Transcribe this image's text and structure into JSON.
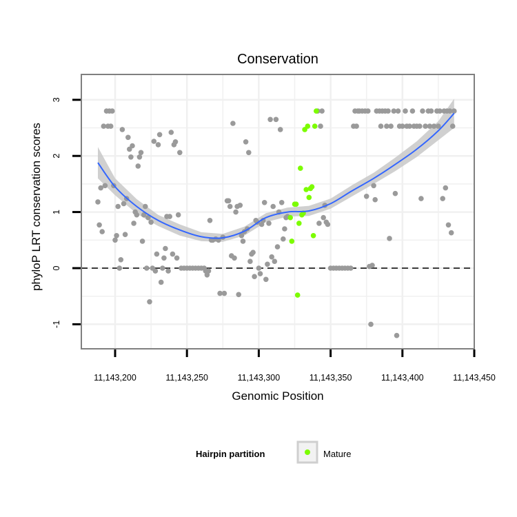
{
  "colors": {
    "background_point": "#9a9a9a",
    "mature_point": "#7CFC00",
    "smooth_line": "#3366FF",
    "ribbon": "#c8c8c8",
    "panel_border": "#7f7f7f",
    "grid": "#f0f0f0",
    "zero_line": "#000000"
  },
  "chart_data": {
    "type": "scatter",
    "title": "Conservation",
    "xlabel": "Genomic Position",
    "ylabel": "phyloP LRT conservation scores",
    "xlim": [
      11143190,
      11143440
    ],
    "ylim": [
      -1.45,
      3.45
    ],
    "x_ticks": [
      11143200,
      11143250,
      11143300,
      11143350,
      11143400,
      11143450
    ],
    "x_tick_labels": [
      "11,143,200",
      "11,143,250",
      "11,143,300",
      "11,143,350",
      "11,143,400",
      "11,143,450"
    ],
    "y_ticks": [
      -1,
      0,
      1,
      2,
      3
    ],
    "y_tick_labels": [
      "-1",
      "0",
      "1",
      "2",
      "3"
    ],
    "grid": true,
    "reference_line": {
      "y": 0,
      "style": "dashed"
    },
    "legend": {
      "title": "Hairpin partition",
      "placement": "bottom",
      "entries": [
        "Mature"
      ]
    },
    "series": [
      {
        "name": "Mature",
        "points": [
          [
            11143322,
            0.9
          ],
          [
            11143323,
            0.48
          ],
          [
            11143325,
            1.14
          ],
          [
            11143326,
            1.14
          ],
          [
            11143327,
            -0.48
          ],
          [
            11143328,
            0.8
          ],
          [
            11143329,
            1.78
          ],
          [
            11143330,
            0.95
          ],
          [
            11143331,
            0.98
          ],
          [
            11143332,
            2.47
          ],
          [
            11143333,
            1.4
          ],
          [
            11143334,
            2.53
          ],
          [
            11143335,
            1.26
          ],
          [
            11143336,
            1.42
          ],
          [
            11143337,
            1.45
          ],
          [
            11143338,
            0.58
          ],
          [
            11143339,
            2.53
          ],
          [
            11143340,
            2.8
          ]
        ]
      },
      {
        "name": "",
        "points": [
          [
            11143188,
            1.18
          ],
          [
            11143189,
            0.77
          ],
          [
            11143190,
            1.43
          ],
          [
            11143191,
            0.65
          ],
          [
            11143192,
            2.53
          ],
          [
            11143193,
            1.47
          ],
          [
            11143194,
            2.8
          ],
          [
            11143195,
            2.53
          ],
          [
            11143196,
            2.8
          ],
          [
            11143197,
            2.53
          ],
          [
            11143198,
            2.8
          ],
          [
            11143199,
            1.47
          ],
          [
            11143200,
            0.5
          ],
          [
            11143201,
            0.58
          ],
          [
            11143202,
            1.1
          ],
          [
            11143203,
            0.0
          ],
          [
            11143204,
            0.15
          ],
          [
            11143205,
            2.47
          ],
          [
            11143206,
            1.15
          ],
          [
            11143207,
            0.6
          ],
          [
            11143208,
            1.24
          ],
          [
            11143209,
            2.33
          ],
          [
            11143210,
            2.12
          ],
          [
            11143211,
            1.98
          ],
          [
            11143212,
            2.18
          ],
          [
            11143213,
            0.8
          ],
          [
            11143214,
            1.0
          ],
          [
            11143215,
            0.95
          ],
          [
            11143216,
            1.82
          ],
          [
            11143217,
            1.98
          ],
          [
            11143218,
            2.06
          ],
          [
            11143219,
            0.48
          ],
          [
            11143220,
            0.95
          ],
          [
            11143221,
            1.1
          ],
          [
            11143222,
            0.0
          ],
          [
            11143223,
            0.9
          ],
          [
            11143224,
            -0.6
          ],
          [
            11143225,
            0.82
          ],
          [
            11143226,
            0.0
          ],
          [
            11143227,
            2.26
          ],
          [
            11143228,
            -0.05
          ],
          [
            11143229,
            0.25
          ],
          [
            11143230,
            2.2
          ],
          [
            11143231,
            2.38
          ],
          [
            11143232,
            -0.25
          ],
          [
            11143233,
            0.0
          ],
          [
            11143234,
            0.18
          ],
          [
            11143235,
            0.35
          ],
          [
            11143236,
            0.92
          ],
          [
            11143237,
            -0.05
          ],
          [
            11143238,
            0.92
          ],
          [
            11143239,
            2.42
          ],
          [
            11143240,
            0.25
          ],
          [
            11143241,
            2.2
          ],
          [
            11143242,
            2.25
          ],
          [
            11143243,
            0.18
          ],
          [
            11143244,
            0.95
          ],
          [
            11143245,
            2.06
          ],
          [
            11143246,
            0.0
          ],
          [
            11143248,
            0.0
          ],
          [
            11143250,
            0.0
          ],
          [
            11143252,
            0.0
          ],
          [
            11143254,
            0.0
          ],
          [
            11143256,
            0.0
          ],
          [
            11143258,
            0.0
          ],
          [
            11143260,
            0.0
          ],
          [
            11143262,
            0.0
          ],
          [
            11143263,
            -0.05
          ],
          [
            11143264,
            -0.12
          ],
          [
            11143265,
            -0.05
          ],
          [
            11143266,
            0.85
          ],
          [
            11143267,
            0.5
          ],
          [
            11143268,
            0.5
          ],
          [
            11143270,
            0.52
          ],
          [
            11143272,
            0.5
          ],
          [
            11143273,
            -0.45
          ],
          [
            11143275,
            0.55
          ],
          [
            11143276,
            -0.45
          ],
          [
            11143278,
            1.2
          ],
          [
            11143279,
            1.2
          ],
          [
            11143280,
            1.1
          ],
          [
            11143281,
            0.22
          ],
          [
            11143282,
            2.58
          ],
          [
            11143283,
            0.18
          ],
          [
            11143284,
            1.0
          ],
          [
            11143285,
            1.1
          ],
          [
            11143286,
            -0.47
          ],
          [
            11143287,
            1.12
          ],
          [
            11143288,
            0.58
          ],
          [
            11143289,
            0.48
          ],
          [
            11143290,
            0.65
          ],
          [
            11143291,
            2.25
          ],
          [
            11143292,
            0.7
          ],
          [
            11143293,
            2.06
          ],
          [
            11143294,
            0.12
          ],
          [
            11143295,
            0.25
          ],
          [
            11143296,
            0.28
          ],
          [
            11143297,
            -0.15
          ],
          [
            11143298,
            0.85
          ],
          [
            11143299,
            0.82
          ],
          [
            11143300,
            0.0
          ],
          [
            11143301,
            -0.1
          ],
          [
            11143302,
            0.78
          ],
          [
            11143303,
            0.85
          ],
          [
            11143304,
            1.17
          ],
          [
            11143305,
            -0.2
          ],
          [
            11143306,
            0.07
          ],
          [
            11143307,
            0.8
          ],
          [
            11143308,
            2.65
          ],
          [
            11143309,
            0.2
          ],
          [
            11143310,
            1.1
          ],
          [
            11143311,
            0.12
          ],
          [
            11143312,
            2.65
          ],
          [
            11143313,
            0.38
          ],
          [
            11143314,
            1.0
          ],
          [
            11143315,
            2.47
          ],
          [
            11143316,
            1.17
          ],
          [
            11143317,
            0.52
          ],
          [
            11143318,
            0.7
          ],
          [
            11143319,
            0.9
          ],
          [
            11143320,
            0.92
          ],
          [
            11143341,
            2.8
          ],
          [
            11143342,
            0.8
          ],
          [
            11143343,
            2.53
          ],
          [
            11143344,
            2.8
          ],
          [
            11143345,
            0.9
          ],
          [
            11143346,
            1.12
          ],
          [
            11143347,
            0.82
          ],
          [
            11143348,
            0.78
          ],
          [
            11143350,
            0.0
          ],
          [
            11143352,
            0.0
          ],
          [
            11143354,
            0.0
          ],
          [
            11143356,
            0.0
          ],
          [
            11143358,
            0.0
          ],
          [
            11143360,
            0.0
          ],
          [
            11143362,
            0.0
          ],
          [
            11143364,
            0.0
          ],
          [
            11143366,
            2.53
          ],
          [
            11143367,
            2.8
          ],
          [
            11143368,
            2.53
          ],
          [
            11143369,
            2.8
          ],
          [
            11143370,
            2.8
          ],
          [
            11143372,
            2.8
          ],
          [
            11143374,
            2.8
          ],
          [
            11143375,
            1.28
          ],
          [
            11143376,
            2.8
          ],
          [
            11143377,
            0.03
          ],
          [
            11143378,
            -1.0
          ],
          [
            11143379,
            0.05
          ],
          [
            11143380,
            1.47
          ],
          [
            11143381,
            1.22
          ],
          [
            11143382,
            2.8
          ],
          [
            11143384,
            2.8
          ],
          [
            11143385,
            2.53
          ],
          [
            11143386,
            2.8
          ],
          [
            11143388,
            2.8
          ],
          [
            11143389,
            2.53
          ],
          [
            11143390,
            2.8
          ],
          [
            11143391,
            0.53
          ],
          [
            11143392,
            2.53
          ],
          [
            11143394,
            2.8
          ],
          [
            11143395,
            1.33
          ],
          [
            11143396,
            -1.2
          ],
          [
            11143397,
            2.8
          ],
          [
            11143398,
            2.53
          ],
          [
            11143400,
            2.53
          ],
          [
            11143402,
            2.8
          ],
          [
            11143403,
            2.53
          ],
          [
            11143405,
            2.53
          ],
          [
            11143407,
            2.8
          ],
          [
            11143408,
            2.53
          ],
          [
            11143410,
            2.53
          ],
          [
            11143412,
            2.53
          ],
          [
            11143413,
            1.24
          ],
          [
            11143414,
            2.8
          ],
          [
            11143416,
            2.53
          ],
          [
            11143418,
            2.8
          ],
          [
            11143419,
            2.53
          ],
          [
            11143420,
            2.8
          ],
          [
            11143422,
            2.53
          ],
          [
            11143424,
            2.8
          ],
          [
            11143425,
            2.53
          ],
          [
            11143426,
            2.8
          ],
          [
            11143428,
            1.24
          ],
          [
            11143429,
            2.8
          ],
          [
            11143430,
            1.43
          ],
          [
            11143431,
            2.8
          ],
          [
            11143432,
            0.77
          ],
          [
            11143433,
            2.8
          ],
          [
            11143434,
            0.63
          ],
          [
            11143435,
            2.53
          ],
          [
            11143436,
            2.8
          ]
        ]
      }
    ],
    "smooth": {
      "x": [
        11143188,
        11143200,
        11143215,
        11143230,
        11143245,
        11143260,
        11143275,
        11143290,
        11143305,
        11143320,
        11143335,
        11143350,
        11143365,
        11143380,
        11143395,
        11143410,
        11143425,
        11143436
      ],
      "y": [
        1.88,
        1.45,
        1.1,
        0.85,
        0.68,
        0.56,
        0.54,
        0.66,
        0.9,
        1.0,
        1.02,
        1.15,
        1.38,
        1.6,
        1.85,
        2.12,
        2.45,
        2.76
      ],
      "lower": [
        1.6,
        1.3,
        0.97,
        0.75,
        0.58,
        0.48,
        0.47,
        0.58,
        0.82,
        0.92,
        0.93,
        1.06,
        1.28,
        1.5,
        1.73,
        1.98,
        2.28,
        2.5
      ],
      "upper": [
        2.16,
        1.6,
        1.23,
        0.95,
        0.78,
        0.64,
        0.61,
        0.74,
        0.98,
        1.08,
        1.11,
        1.24,
        1.48,
        1.7,
        1.97,
        2.26,
        2.62,
        3.02
      ]
    }
  }
}
